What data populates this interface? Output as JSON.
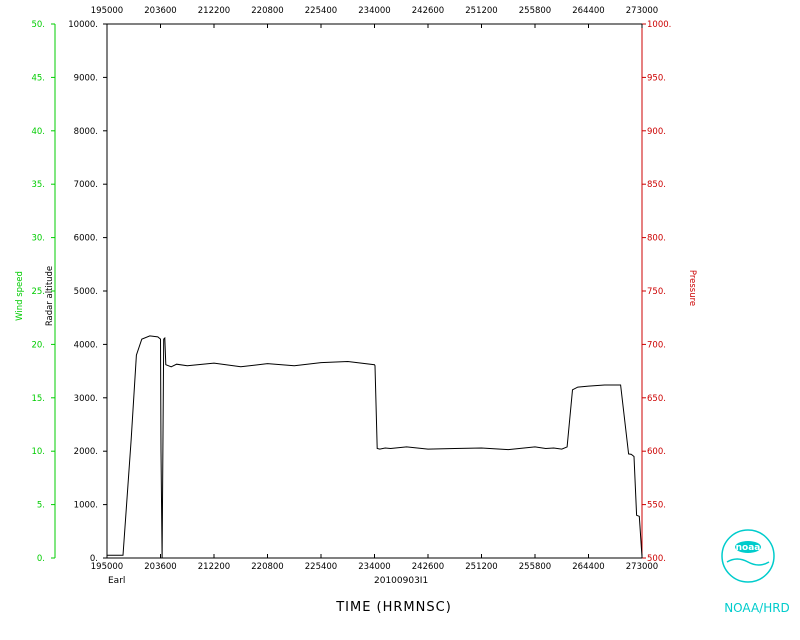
{
  "chart_data": {
    "type": "line",
    "x_axis": {
      "label": "TIME (HRMNSC)",
      "ticks": [
        "195000",
        "203600",
        "212200",
        "220800",
        "225400",
        "234000",
        "242600",
        "251200",
        "255800",
        "264400",
        "273000"
      ]
    },
    "left_axis_wind": {
      "label": "Wind speed",
      "ticks": [
        "0.",
        "5.",
        "10.",
        "15.",
        "20.",
        "25.",
        "30.",
        "35.",
        "40.",
        "45.",
        "50."
      ],
      "ylim": [
        0,
        50
      ],
      "color": "#00cc00"
    },
    "left_axis_altitude": {
      "label": "Radar altitude",
      "ticks": [
        "0.",
        "1000.",
        "2000.",
        "3000.",
        "4000.",
        "5000.",
        "6000.",
        "7000.",
        "8000.",
        "9000.",
        "10000."
      ],
      "ylim": [
        0,
        10000
      ],
      "color": "#000000"
    },
    "right_axis_pressure": {
      "label": "Pressure",
      "ticks": [
        "500.",
        "550.",
        "600.",
        "650.",
        "700.",
        "750.",
        "800.",
        "850.",
        "900.",
        "950.",
        "1000."
      ],
      "color": "#cc0000"
    },
    "series": [
      {
        "color": "#000000",
        "x_index": [
          0,
          0.12,
          0.2,
          0.3,
          0.45,
          0.55,
          0.65,
          0.8,
          0.95,
          1.0,
          1.01,
          1.03,
          1.06,
          1.08,
          1.1,
          1.2,
          1.3,
          1.5,
          2.0,
          2.5,
          3.0,
          3.5,
          4.0,
          4.5,
          5.0,
          5.01,
          5.05,
          5.1,
          5.2,
          5.3,
          5.6,
          6.0,
          6.5,
          7.0,
          7.5,
          8.0,
          8.2,
          8.35,
          8.5,
          8.6,
          8.7,
          8.8,
          9.0,
          9.3,
          9.6,
          9.75,
          9.8,
          9.85,
          9.9,
          9.95,
          10.0
        ],
        "values": [
          50,
          50,
          50,
          50,
          2200,
          3800,
          4100,
          4160,
          4140,
          4100,
          2000,
          0,
          4100,
          4120,
          3620,
          3580,
          3630,
          3600,
          3650,
          3580,
          3640,
          3600,
          3660,
          3680,
          3620,
          3600,
          2050,
          2040,
          2060,
          2050,
          2080,
          2040,
          2050,
          2060,
          2030,
          2080,
          2050,
          2060,
          2040,
          2080,
          3150,
          3200,
          3220,
          3240,
          3240,
          1950,
          1940,
          1900,
          800,
          780,
          20
        ]
      }
    ]
  },
  "footer": {
    "storm_name": "Earl",
    "flight_id": "20100903I1",
    "org_label": "NOAA/HRD"
  },
  "logo": {
    "text": "noaa",
    "color": "#00cccc"
  }
}
